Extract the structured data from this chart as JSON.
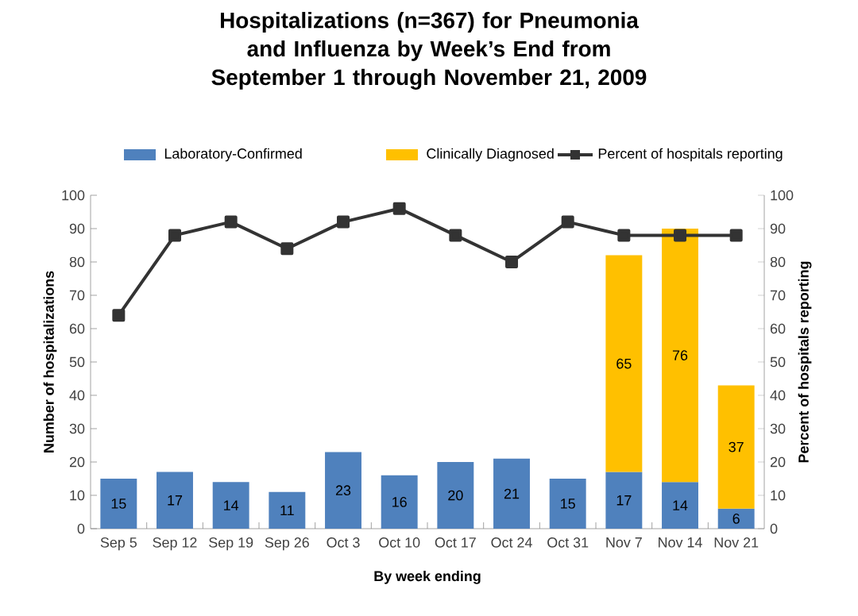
{
  "chart_data": {
    "type": "bar",
    "title": "Hospitalizations (n=367) for Pneumonia and Influenza by Week’s End from September 1 through November 21, 2009",
    "xlabel": "By week ending",
    "ylabel": "Number of hospitalizations",
    "y2label": "Percent of hospitals reporting",
    "categories": [
      "Sep 5",
      "Sep 12",
      "Sep 19",
      "Sep 26",
      "Oct 3",
      "Oct 10",
      "Oct 17",
      "Oct 24",
      "Oct 31",
      "Nov 7",
      "Nov 14",
      "Nov 21"
    ],
    "stacked": true,
    "legend": "top",
    "marker": "square",
    "series": [
      {
        "name": "Laboratory-Confirmed",
        "color": "#4f81bd",
        "values": [
          15,
          17,
          14,
          11,
          23,
          16,
          20,
          21,
          15,
          17,
          14,
          6
        ],
        "value_labels": [
          "15",
          "17",
          "14",
          "11",
          "23",
          "16",
          "20",
          "21",
          "15",
          "17",
          "14",
          "6"
        ]
      },
      {
        "name": "Clinically Diagnosed",
        "color": "#ffc000",
        "values": [
          null,
          null,
          null,
          null,
          null,
          null,
          null,
          null,
          null,
          65,
          76,
          37
        ],
        "value_labels": [
          null,
          null,
          null,
          null,
          null,
          null,
          null,
          null,
          null,
          "65",
          "76",
          "37"
        ]
      },
      {
        "name": "Percent of hospitals reporting",
        "type": "line",
        "axis": "y2",
        "color": "#333333",
        "values": [
          64,
          88,
          92,
          84,
          92,
          96,
          88,
          80,
          92,
          88,
          88,
          88
        ]
      }
    ],
    "ylim": [
      0,
      100
    ],
    "yticks": [
      0,
      10,
      20,
      30,
      40,
      50,
      60,
      70,
      80,
      90,
      100
    ],
    "y2lim": [
      0,
      100
    ],
    "y2ticks": [
      0,
      10,
      20,
      30,
      40,
      50,
      60,
      70,
      80,
      90,
      100
    ]
  }
}
